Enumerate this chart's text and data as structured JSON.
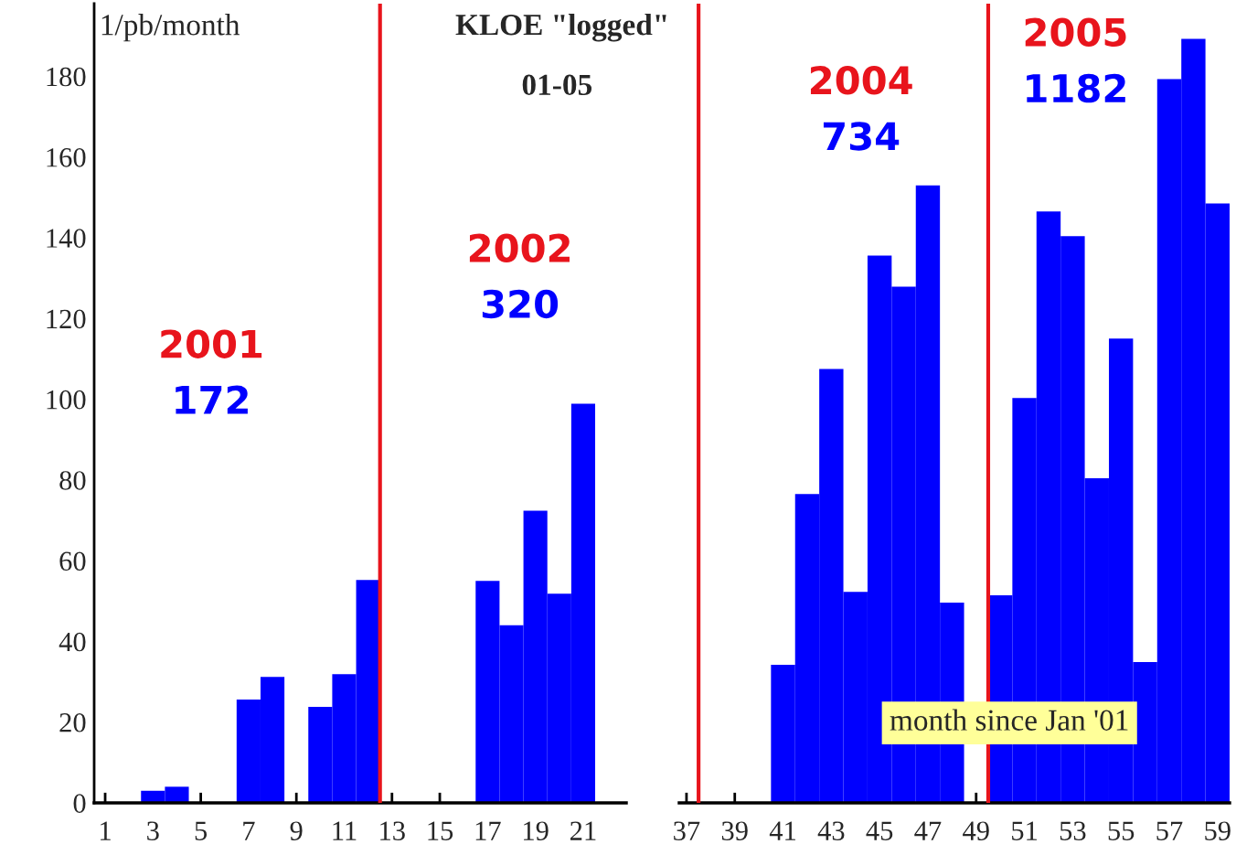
{
  "chart_data": [
    {
      "type": "bar",
      "title": "KLOE \"logged\"",
      "subtitle": "01-05",
      "ylabel": "1/pb/month",
      "x": [
        1,
        2,
        3,
        4,
        5,
        6,
        7,
        8,
        9,
        10,
        11,
        12,
        13,
        14,
        15,
        16,
        17,
        18,
        19,
        20,
        21,
        22
      ],
      "values": [
        0,
        0,
        3,
        4,
        0,
        0,
        25.6,
        31.2,
        0,
        23.8,
        31.9,
        55.2,
        0,
        0,
        0,
        0,
        55,
        44,
        72.4,
        51.8,
        98.9,
        0
      ],
      "color": "#0000ff",
      "xlim": [
        0.54,
        22.8
      ],
      "xticks": [
        1,
        3,
        5,
        7,
        9,
        11,
        13,
        15,
        17,
        19,
        21
      ],
      "ylim": [
        0,
        198
      ],
      "yticks": [
        0,
        20,
        40,
        60,
        80,
        100,
        120,
        140,
        160,
        180
      ],
      "ref_lines": [
        {
          "axis": "x",
          "value": 12.5,
          "color": "#e8141c"
        }
      ],
      "annotations": [
        "2001",
        "172",
        "2002",
        "320"
      ],
      "grid": false,
      "legend": false
    },
    {
      "type": "bar",
      "xlabel": "month since Jan '01",
      "x": [
        37,
        38,
        39,
        40,
        41,
        42,
        43,
        44,
        45,
        46,
        47,
        48,
        49,
        50,
        51,
        52,
        53,
        54,
        55,
        56,
        57,
        58,
        59
      ],
      "values": [
        0,
        0,
        0,
        0,
        34.2,
        76.5,
        107.5,
        52.3,
        135.6,
        127.9,
        153,
        49.6,
        0,
        51.4,
        100.3,
        146.5,
        140.4,
        80.4,
        115,
        34.9,
        179.3,
        189.3,
        148.5
      ],
      "color": "#0000ff",
      "xlim": [
        36.7,
        59.5
      ],
      "xticks": [
        37,
        39,
        41,
        43,
        45,
        47,
        49,
        51,
        53,
        55,
        57,
        59
      ],
      "ylim": [
        0,
        198
      ],
      "tick_labels": "x",
      "ref_lines": [
        {
          "axis": "x",
          "value": 37.5,
          "color": "#e8141c"
        },
        {
          "axis": "x",
          "value": 49.5,
          "color": "#e8141c"
        }
      ],
      "annotations": [
        "2004",
        "734",
        "2005",
        "1182"
      ],
      "grid": false,
      "legend": false
    }
  ]
}
